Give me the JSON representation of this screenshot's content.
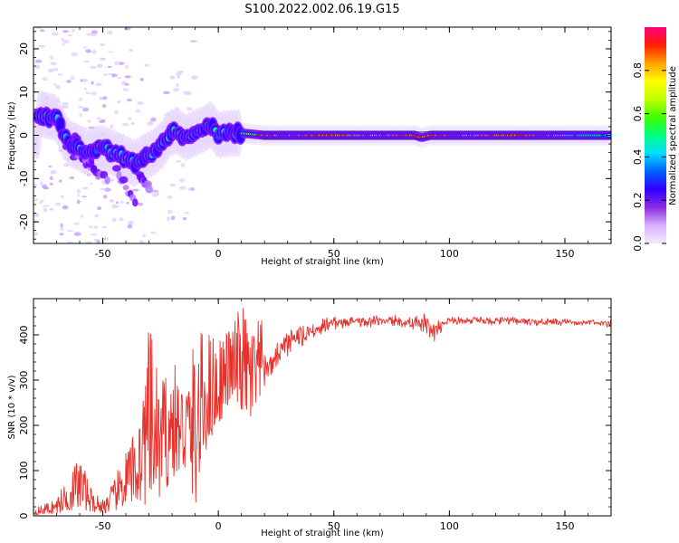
{
  "title": "S100.2022.002.06.19.G15",
  "chart_data": [
    {
      "type": "heatmap",
      "xlabel": "Height of straight line (km)",
      "ylabel": "Frequency (Hz)",
      "xlim": [
        -80,
        170
      ],
      "ylim": [
        -25,
        25
      ],
      "xticks": [
        -50,
        0,
        50,
        100,
        150
      ],
      "yticks": [
        -20,
        -10,
        0,
        10,
        20
      ],
      "colorbar": {
        "label": "Normalized spectral amplitude",
        "ticks": [
          "0.0",
          "0.2",
          "0.4",
          "0.6",
          "0.8"
        ],
        "range": [
          0,
          1
        ],
        "colors": [
          "#f2e8ff",
          "#d9b3ff",
          "#8a2be2",
          "#3000ff",
          "#0060ff",
          "#00ddff",
          "#00ff80",
          "#40ff00",
          "#c0ff00",
          "#ffff00",
          "#ffa000",
          "#ff2000",
          "#ff0080"
        ]
      },
      "ridge": [
        {
          "x": -78,
          "y": 5.0
        },
        {
          "x": -74,
          "y": 4.5
        },
        {
          "x": -70,
          "y": 4.0
        },
        {
          "x": -67,
          "y": 0.0
        },
        {
          "x": -64,
          "y": -2.0
        },
        {
          "x": -60,
          "y": -3.0
        },
        {
          "x": -56,
          "y": -4.0
        },
        {
          "x": -52,
          "y": -3.0
        },
        {
          "x": -48,
          "y": -3.5
        },
        {
          "x": -44,
          "y": -4.5
        },
        {
          "x": -40,
          "y": -5.5
        },
        {
          "x": -36,
          "y": -6.5
        },
        {
          "x": -32,
          "y": -5.0
        },
        {
          "x": -28,
          "y": -4.0
        },
        {
          "x": -24,
          "y": -2.0
        },
        {
          "x": -21,
          "y": 0.5
        },
        {
          "x": -18,
          "y": 1.0
        },
        {
          "x": -14,
          "y": -0.5
        },
        {
          "x": -10,
          "y": 0.5
        },
        {
          "x": -6,
          "y": 1.5
        },
        {
          "x": -3,
          "y": 2.5
        },
        {
          "x": 0,
          "y": 0.0
        },
        {
          "x": 5,
          "y": 0.5
        },
        {
          "x": 10,
          "y": 0.5
        },
        {
          "x": 20,
          "y": 0.0
        },
        {
          "x": 50,
          "y": 0.0
        },
        {
          "x": 85,
          "y": 0.0
        },
        {
          "x": 88,
          "y": -0.5
        },
        {
          "x": 92,
          "y": 0.0
        },
        {
          "x": 120,
          "y": 0.0
        },
        {
          "x": 150,
          "y": 0.0
        },
        {
          "x": 170,
          "y": 0.0
        }
      ]
    },
    {
      "type": "line",
      "xlabel": "Height of straight line (km)",
      "ylabel": "SNR (10 * v/v)",
      "xlim": [
        -80,
        170
      ],
      "ylim": [
        0,
        480
      ],
      "xticks": [
        -50,
        0,
        50,
        100,
        150
      ],
      "yticks": [
        0,
        100,
        200,
        300,
        400
      ],
      "color": "#e8302a",
      "envelope": [
        {
          "x": -80,
          "low": 2,
          "high": 15
        },
        {
          "x": -70,
          "low": 5,
          "high": 40
        },
        {
          "x": -60,
          "low": 15,
          "high": 140
        },
        {
          "x": -55,
          "low": 10,
          "high": 60
        },
        {
          "x": -50,
          "low": 5,
          "high": 40
        },
        {
          "x": -45,
          "low": 10,
          "high": 80
        },
        {
          "x": -40,
          "low": 20,
          "high": 150
        },
        {
          "x": -35,
          "low": 30,
          "high": 200
        },
        {
          "x": -30,
          "low": 20,
          "high": 420
        },
        {
          "x": -25,
          "low": 40,
          "high": 300
        },
        {
          "x": -20,
          "low": 80,
          "high": 350
        },
        {
          "x": -15,
          "low": 100,
          "high": 300
        },
        {
          "x": -10,
          "low": 20,
          "high": 400
        },
        {
          "x": -5,
          "low": 150,
          "high": 420
        },
        {
          "x": 0,
          "low": 200,
          "high": 400
        },
        {
          "x": 5,
          "low": 250,
          "high": 420
        },
        {
          "x": 10,
          "low": 230,
          "high": 470
        },
        {
          "x": 15,
          "low": 200,
          "high": 430
        },
        {
          "x": 20,
          "low": 260,
          "high": 440
        },
        {
          "x": 30,
          "low": 340,
          "high": 450
        },
        {
          "x": 40,
          "low": 380,
          "high": 460
        },
        {
          "x": 50,
          "low": 405,
          "high": 470
        },
        {
          "x": 70,
          "low": 415,
          "high": 460
        },
        {
          "x": 90,
          "low": 400,
          "high": 475
        },
        {
          "x": 92,
          "low": 370,
          "high": 470
        },
        {
          "x": 100,
          "low": 420,
          "high": 455
        },
        {
          "x": 130,
          "low": 418,
          "high": 452
        },
        {
          "x": 170,
          "low": 415,
          "high": 445
        }
      ]
    }
  ]
}
